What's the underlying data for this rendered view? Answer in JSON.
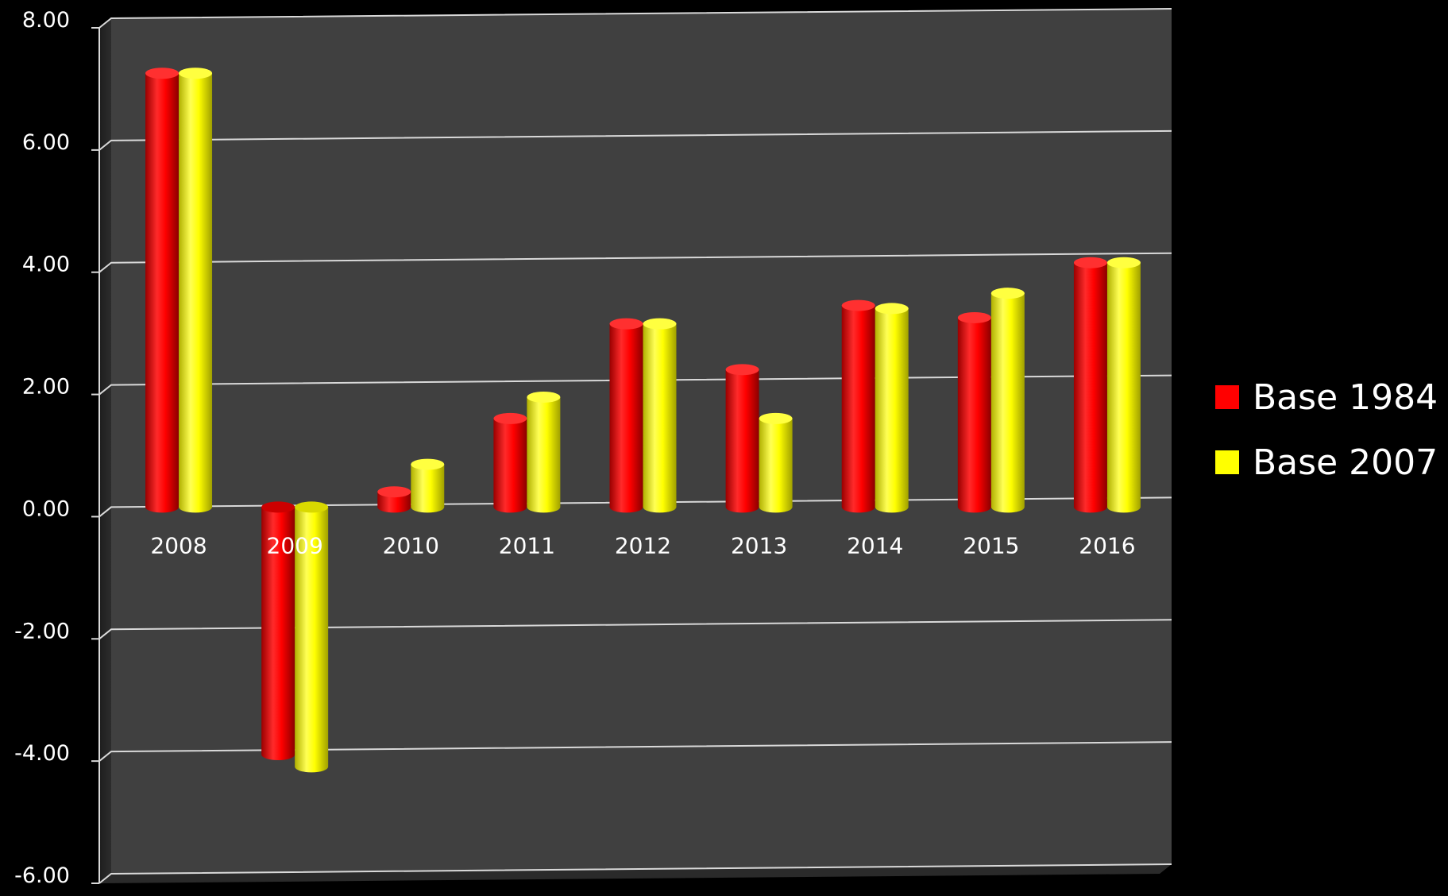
{
  "chart_data": {
    "type": "bar",
    "title": "",
    "xlabel": "",
    "ylabel": "",
    "categories": [
      "2008",
      "2009",
      "2010",
      "2011",
      "2012",
      "2013",
      "2014",
      "2015",
      "2016"
    ],
    "series": [
      {
        "name": "Base 1984",
        "color": "#ff0000",
        "values": [
          7.1,
          -4.05,
          0.25,
          1.45,
          3.0,
          2.25,
          3.3,
          3.1,
          4.0
        ]
      },
      {
        "name": "Base 2007",
        "color": "#ffff00",
        "values": [
          7.1,
          -4.25,
          0.7,
          1.8,
          3.0,
          1.45,
          3.25,
          3.5,
          4.0
        ]
      }
    ],
    "ylim": [
      -6,
      8
    ],
    "yticks": [
      "8.00",
      "6.00",
      "4.00",
      "2.00",
      "0.00",
      "-2.00",
      "-4.00",
      "-6.00"
    ],
    "ytick_values": [
      8,
      6,
      4,
      2,
      0,
      -2,
      -4,
      -6
    ],
    "grid": true,
    "legend_position": "right",
    "background": "#000000",
    "plot_background": "#404040",
    "gridline_color": "#d9d9d9"
  }
}
